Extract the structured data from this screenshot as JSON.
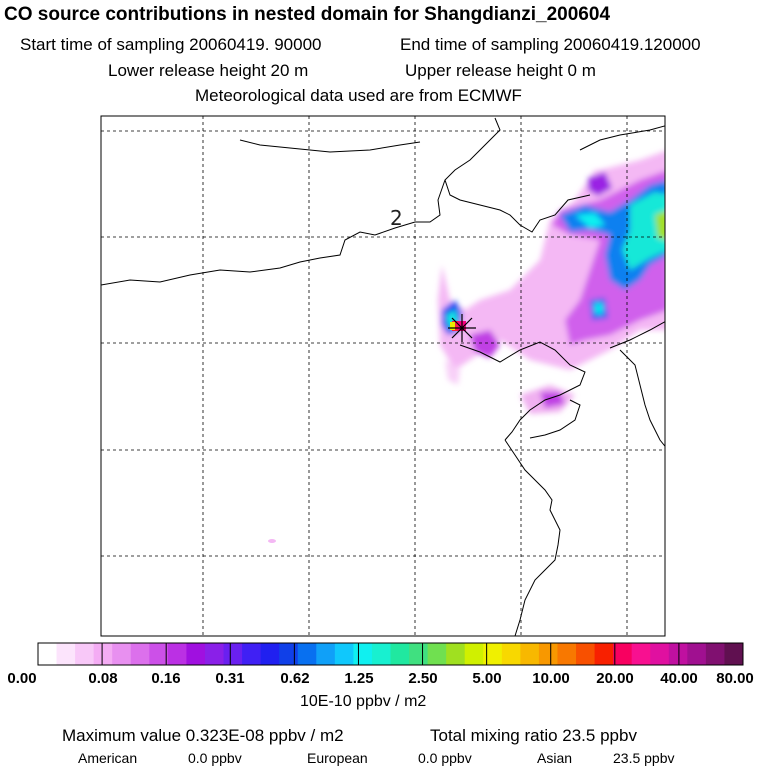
{
  "header": {
    "title": "CO  source contributions in nested domain for Shangdianzi_200604",
    "start_time": "Start time of sampling 20060419. 90000",
    "end_time": "End time of sampling 20060419.120000",
    "lower_release": "Lower release height   20 m",
    "upper_release": "Upper release height    0 m",
    "met_data": "Meteorological data used are from ECMWF"
  },
  "map": {
    "site_label": "2",
    "receptor": "Shangdianzi"
  },
  "colorbar": {
    "labels": [
      "0.00",
      "0.08",
      "0.16",
      "0.31",
      "0.62",
      "1.25",
      "2.50",
      "5.00",
      "10.00",
      "20.00",
      "40.00",
      "80.00"
    ],
    "colors": [
      "#ffffff",
      "#fce4fc",
      "#f8c8f8",
      "#f4acf4",
      "#e890f0",
      "#dc70ec",
      "#cc50e8",
      "#bb30e4",
      "#a010e0",
      "#8a20e8",
      "#6a20f0",
      "#4020f4",
      "#2020f0",
      "#1040e8",
      "#0870f0",
      "#10a0f8",
      "#10c8fc",
      "#10f0f0",
      "#18f0d0",
      "#20e8a0",
      "#40e080",
      "#70e050",
      "#a0e020",
      "#d0f000",
      "#f0f000",
      "#f8d800",
      "#f8b800",
      "#f89800",
      "#f87800",
      "#f85000",
      "#f82000",
      "#f80060",
      "#f81090",
      "#e010a0",
      "#c010a0",
      "#a01090",
      "#801070",
      "#601050"
    ],
    "unit": "10E-10 ppbv / m2"
  },
  "summary": {
    "max_value": "Maximum value  0.323E-08 ppbv / m2",
    "total_mixing": "Total mixing ratio      23.5 ppbv",
    "american_label": "American",
    "american_value": "0.0 ppbv",
    "european_label": "European",
    "european_value": "0.0 ppbv",
    "asian_label": "Asian",
    "asian_value": "23.5 ppbv"
  }
}
